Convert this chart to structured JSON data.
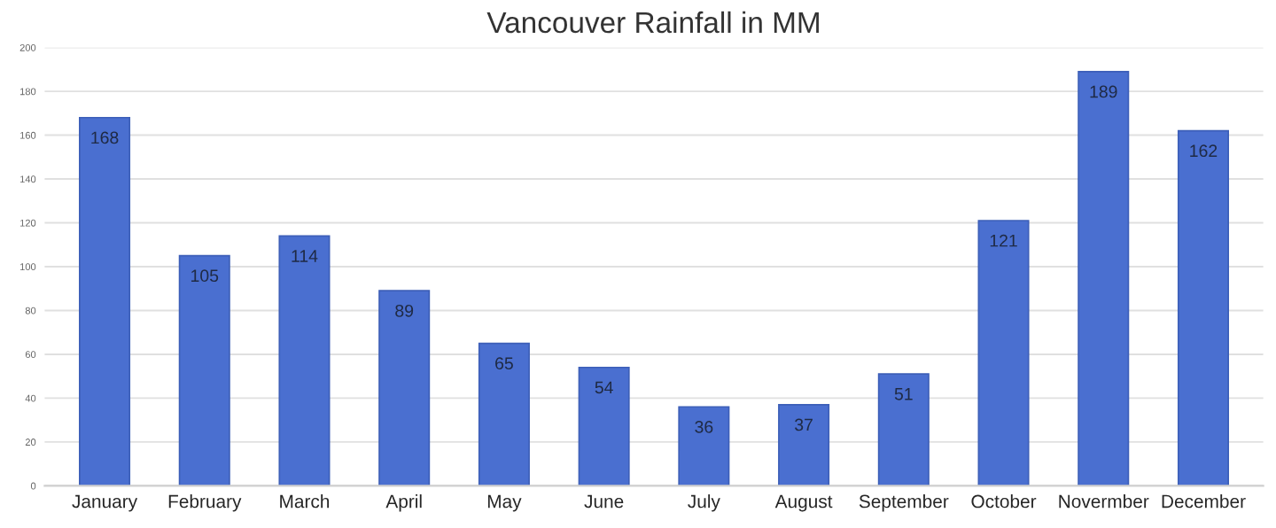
{
  "chart_data": {
    "type": "bar",
    "title": "Vancouver Rainfall in MM",
    "categories": [
      "January",
      "February",
      "March",
      "April",
      "May",
      "June",
      "July",
      "August",
      "September",
      "October",
      "Novermber",
      "December"
    ],
    "values": [
      168,
      105,
      114,
      89,
      65,
      54,
      36,
      37,
      51,
      121,
      189,
      162
    ],
    "color": "#4a6fd0",
    "ylim": [
      0,
      200
    ],
    "yticks": [
      0,
      20,
      40,
      60,
      80,
      100,
      120,
      140,
      160,
      180,
      200
    ],
    "grid": "y",
    "data_labels": true
  }
}
